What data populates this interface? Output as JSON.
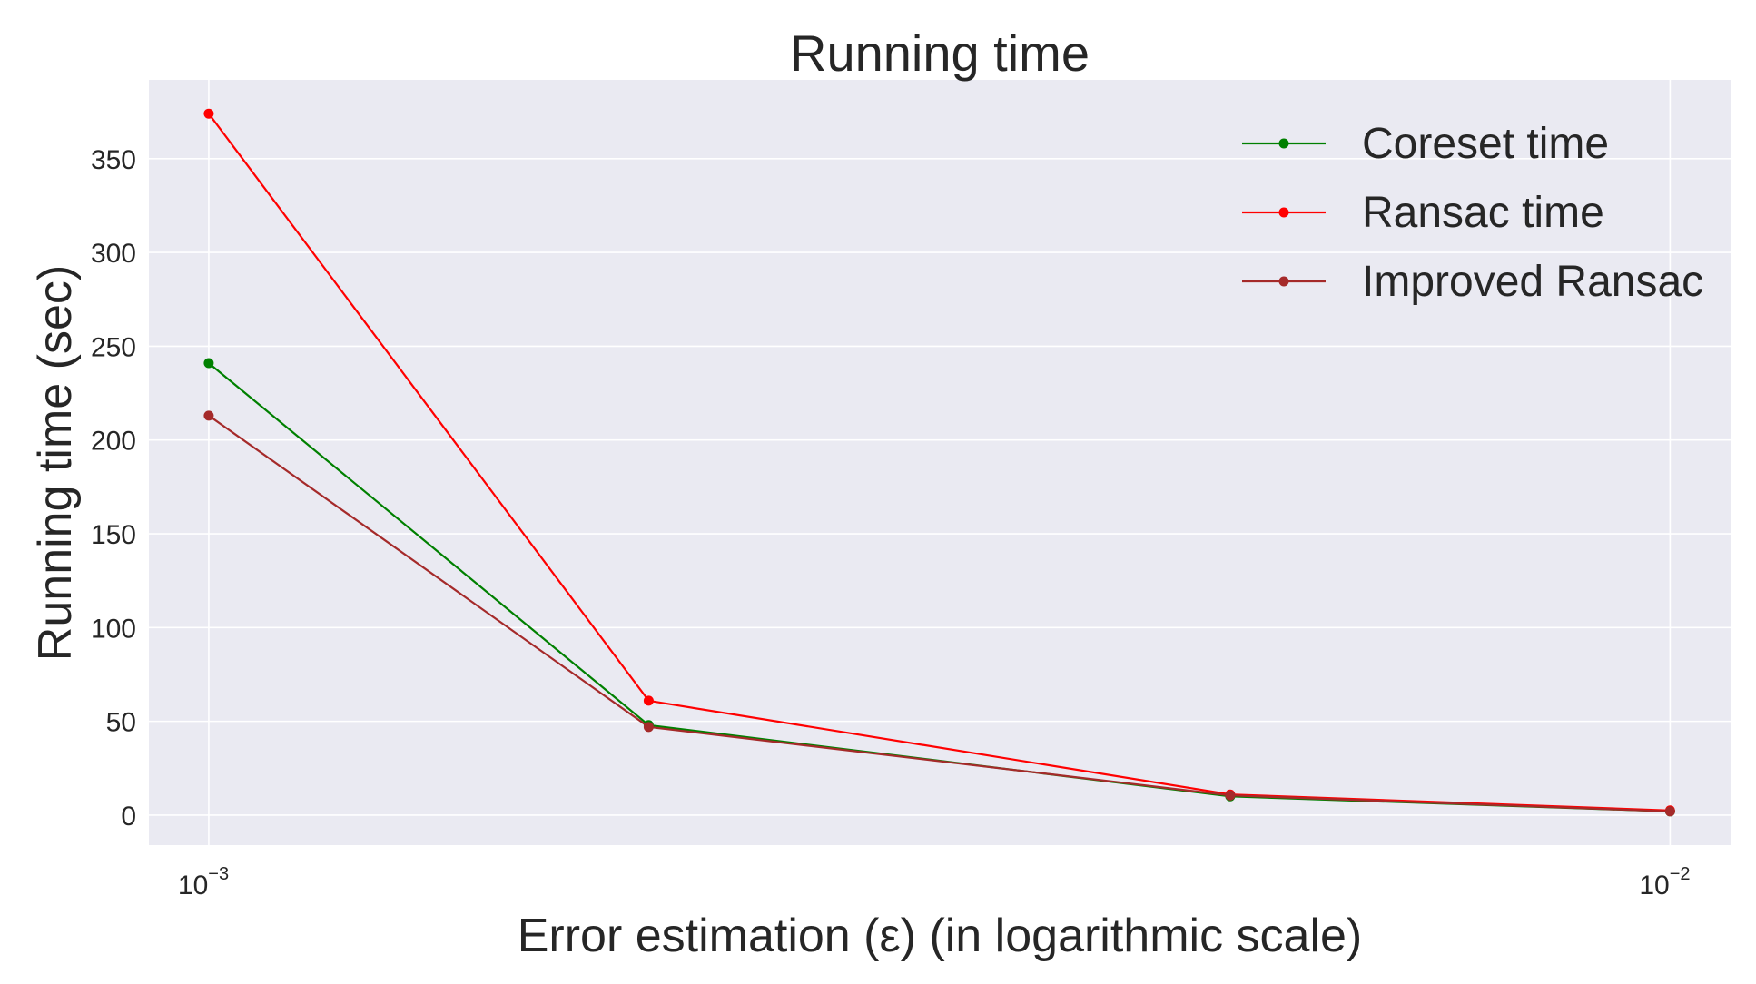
{
  "chart_data": {
    "type": "line",
    "title": "Running time",
    "xlabel": "Error estimation (ε) (in logarithmic scale)",
    "ylabel": "Running time (sec)",
    "xscale": "log",
    "xlim": [
      0.00091,
      0.011
    ],
    "ylim": [
      -16,
      392
    ],
    "yticks": [
      0,
      50,
      100,
      150,
      200,
      250,
      300,
      350
    ],
    "xticks": [
      {
        "value": 0.001,
        "base": "10",
        "exponent": "−3"
      },
      {
        "value": 0.01,
        "base": "10",
        "exponent": "−2"
      }
    ],
    "x": [
      0.001,
      0.002,
      0.005,
      0.01
    ],
    "series": [
      {
        "name": "Coreset time",
        "color": "#008000",
        "values": [
          241,
          48,
          10,
          2
        ]
      },
      {
        "name": "Ransac time",
        "color": "#ff0000",
        "values": [
          374,
          61,
          11,
          2.5
        ]
      },
      {
        "name": "Improved Ransac",
        "color": "#a52a2a",
        "values": [
          213,
          47,
          10.5,
          2
        ]
      }
    ],
    "legend_position": "top-right",
    "grid": true,
    "background_color": "#eaeaf2",
    "grid_color": "#ffffff"
  }
}
